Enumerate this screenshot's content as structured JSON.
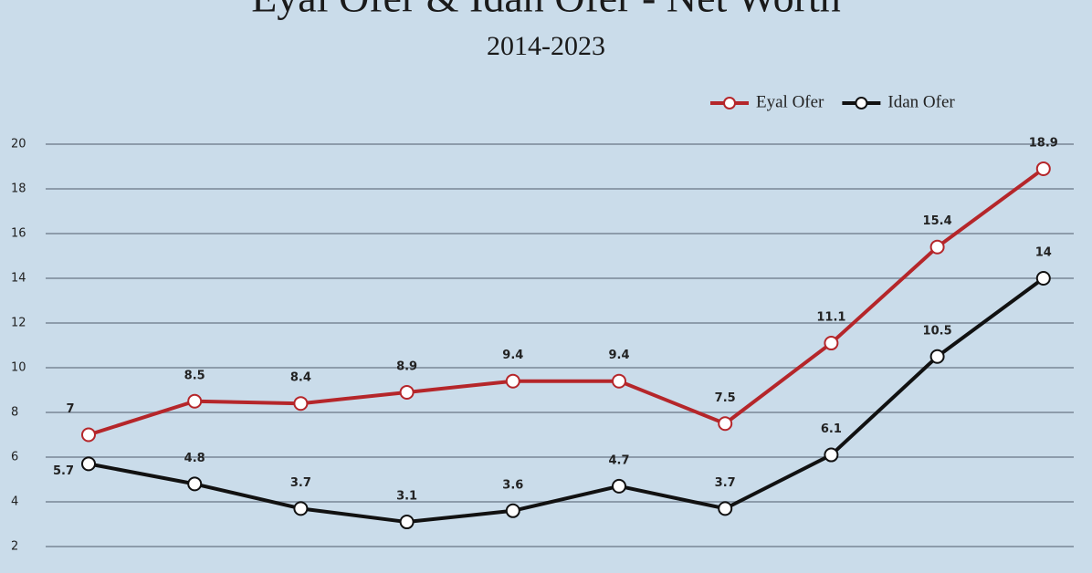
{
  "chart_data": {
    "type": "line",
    "title": "Eyal Ofer & Idan Ofer - Net Worth",
    "subtitle": "2014-2023",
    "categories": [
      null,
      null,
      null,
      null,
      null,
      null,
      null,
      null,
      null,
      null
    ],
    "series": [
      {
        "name": "Eyal Ofer",
        "color": "#b5262a",
        "values": [
          7,
          8.5,
          8.4,
          8.9,
          9.4,
          9.4,
          7.5,
          11.1,
          15.4,
          18.9
        ]
      },
      {
        "name": "Idan Ofer",
        "color": "#111111",
        "values": [
          5.7,
          4.8,
          3.7,
          3.1,
          3.6,
          4.7,
          3.7,
          6.1,
          10.5,
          14
        ]
      }
    ],
    "ylim": [
      0.8,
      20
    ],
    "yticks": [
      2,
      4,
      6,
      8,
      10,
      12,
      14,
      16,
      18,
      20
    ],
    "grid": true,
    "legend": "upper right"
  }
}
